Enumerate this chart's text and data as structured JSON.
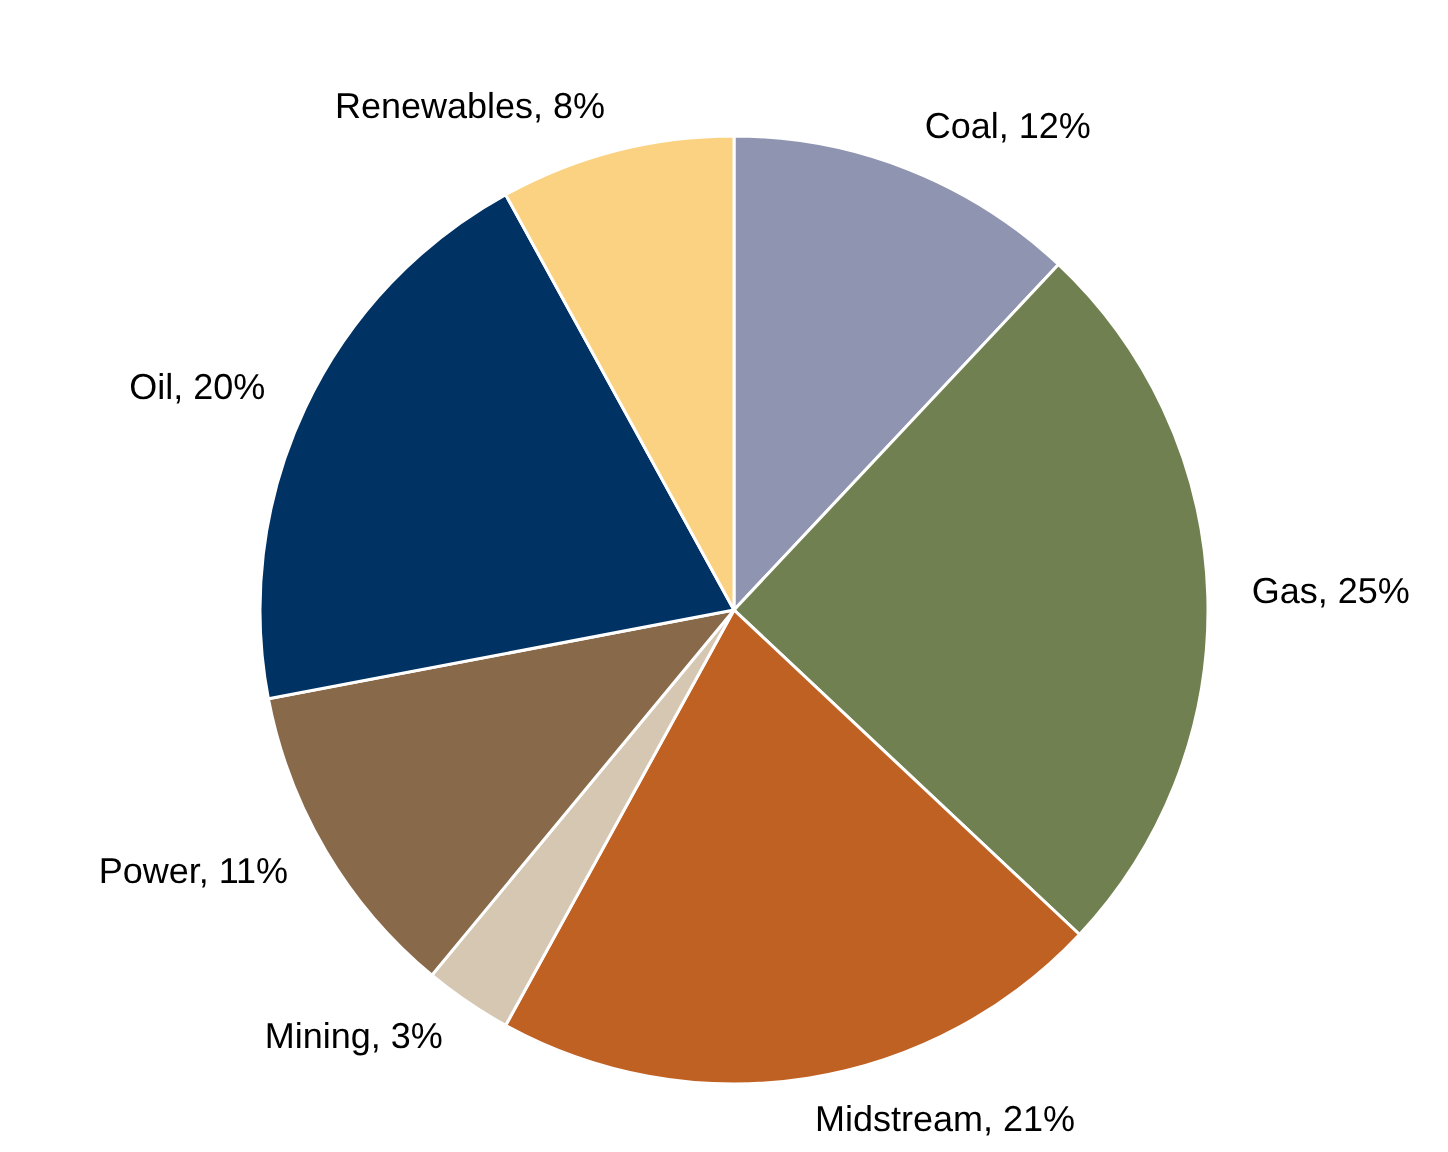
{
  "chart_data": {
    "type": "pie",
    "categories": [
      "Coal",
      "Gas",
      "Midstream",
      "Mining",
      "Power",
      "Oil",
      "Renewables"
    ],
    "values": [
      12,
      25,
      21,
      3,
      11,
      20,
      8
    ],
    "value_labels": [
      "12%",
      "25%",
      "21%",
      "3%",
      "11%",
      "20%",
      "8%"
    ],
    "colors": [
      "#8f94b0",
      "#718050",
      "#c06124",
      "#d6c7b3",
      "#88694a",
      "#003263",
      "#fad282"
    ],
    "legend": false
  }
}
